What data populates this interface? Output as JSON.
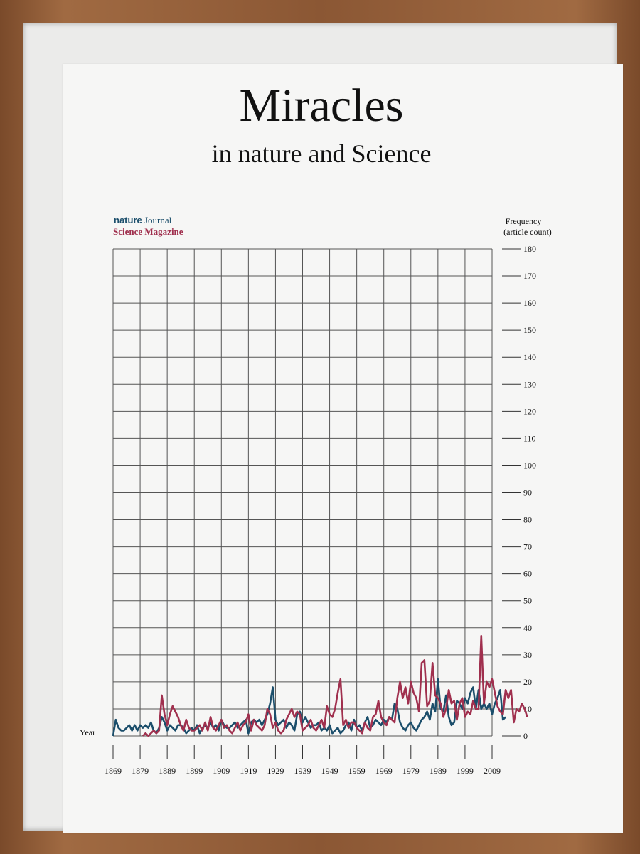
{
  "chart_data": {
    "type": "line",
    "title": "Miracles",
    "subtitle": "in nature and Science",
    "xlabel": "Year",
    "ylabel": "Frequency",
    "ylabel_sub": "(article count)",
    "xlim": [
      1869,
      2009
    ],
    "ylim": [
      0,
      180
    ],
    "x_ticks": [
      1869,
      1879,
      1889,
      1899,
      1909,
      1919,
      1929,
      1939,
      1949,
      1959,
      1969,
      1979,
      1989,
      1999,
      2009
    ],
    "y_ticks": [
      0,
      10,
      20,
      30,
      40,
      50,
      60,
      70,
      80,
      90,
      100,
      110,
      120,
      130,
      140,
      150,
      160,
      170,
      180
    ],
    "grid": true,
    "legend_position": "top-left",
    "series": [
      {
        "name": "nature Journal",
        "legend_prefix": "nature",
        "legend_suffix": " Journal",
        "color": "#1b4e6b",
        "x_start": 1869,
        "values": [
          0,
          6,
          3,
          2,
          2,
          3,
          4,
          2,
          4,
          2,
          4,
          3,
          4,
          3,
          5,
          2,
          1,
          3,
          7,
          5,
          2,
          4,
          3,
          2,
          4,
          4,
          3,
          1,
          2,
          3,
          2,
          4,
          1,
          3,
          4,
          3,
          5,
          3,
          4,
          2,
          6,
          4,
          3,
          3,
          4,
          5,
          3,
          4,
          5,
          6,
          1,
          5,
          6,
          5,
          6,
          4,
          6,
          8,
          12,
          18,
          6,
          4,
          5,
          6,
          3,
          5,
          4,
          2,
          8,
          9,
          5,
          7,
          5,
          3,
          4,
          4,
          5,
          2,
          3,
          2,
          4,
          1,
          2,
          3,
          1,
          2,
          4,
          5,
          2,
          6,
          3,
          4,
          2,
          5,
          7,
          3,
          4,
          6,
          5,
          4,
          6,
          5,
          7,
          6,
          12,
          10,
          5,
          3,
          2,
          4,
          5,
          3,
          2,
          4,
          6,
          7,
          9,
          6,
          12,
          9,
          21,
          10,
          9,
          15,
          7,
          4,
          5,
          13,
          12,
          10,
          14,
          12,
          16,
          18,
          10,
          17,
          10,
          12,
          10,
          12,
          8,
          12,
          14,
          17,
          6,
          7
        ]
      },
      {
        "name": "Science Magazine",
        "color": "#a0304e",
        "x_start": 1880,
        "values": [
          0,
          1,
          0,
          1,
          2,
          1,
          2,
          15,
          8,
          4,
          8,
          11,
          9,
          7,
          4,
          2,
          6,
          3,
          2,
          2,
          3,
          4,
          2,
          5,
          2,
          7,
          3,
          2,
          4,
          6,
          3,
          4,
          2,
          1,
          3,
          5,
          2,
          4,
          5,
          8,
          2,
          6,
          4,
          3,
          2,
          4,
          10,
          8,
          3,
          5,
          2,
          1,
          2,
          6,
          8,
          10,
          7,
          9,
          8,
          2,
          3,
          4,
          6,
          3,
          2,
          4,
          6,
          3,
          11,
          8,
          7,
          10,
          16,
          21,
          4,
          6,
          3,
          5,
          5,
          3,
          2,
          1,
          5,
          3,
          2,
          7,
          8,
          13,
          7,
          5,
          4,
          7,
          6,
          5,
          14,
          20,
          14,
          18,
          12,
          20,
          16,
          14,
          9,
          27,
          28,
          11,
          13,
          27,
          15,
          14,
          12,
          7,
          10,
          17,
          12,
          13,
          6,
          12,
          14,
          7,
          9,
          8,
          13,
          10,
          10,
          37,
          12,
          20,
          18,
          21,
          16,
          11,
          9,
          8,
          17,
          14,
          17,
          5,
          10,
          9,
          12,
          10,
          7
        ]
      }
    ]
  }
}
